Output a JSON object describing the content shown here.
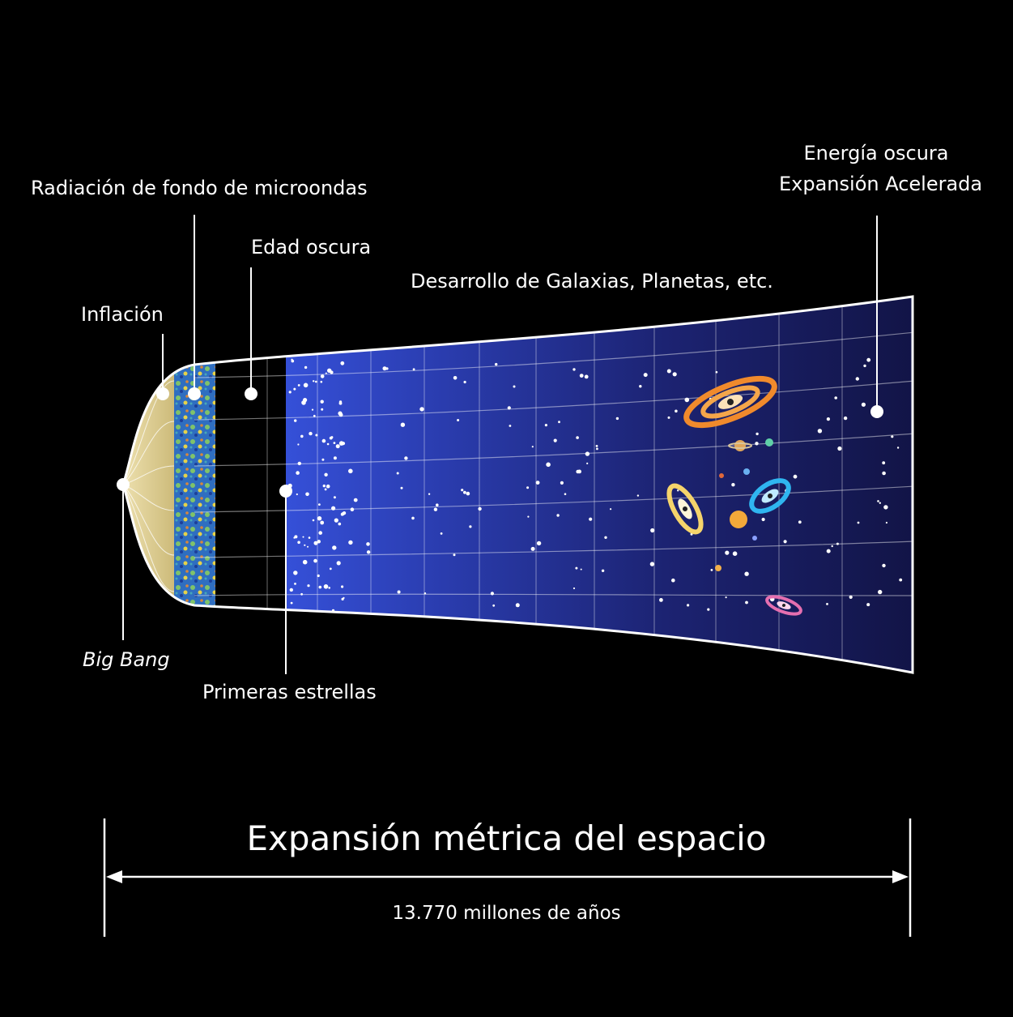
{
  "labels": {
    "cmb": "Radiación de fondo de microondas",
    "inflation": "Inflación",
    "dark_age": "Edad oscura",
    "galaxies": "Desarrollo de Galaxias, Planetas, etc.",
    "dark_energy_line1": "Energía oscura",
    "dark_energy_line2": "Expansión Acelerada",
    "big_bang": "Big Bang",
    "first_stars": "Primeras estrellas"
  },
  "footer": {
    "title": "Expansión métrica del espacio",
    "duration": "13.770 millones de años"
  },
  "colors": {
    "background": "#000000",
    "inflation_fill": "#d9c98a",
    "cmb_band": "#2e6fbf",
    "space_light": "#3550d8",
    "space_dark": "#121446",
    "outline": "#ffffff"
  }
}
